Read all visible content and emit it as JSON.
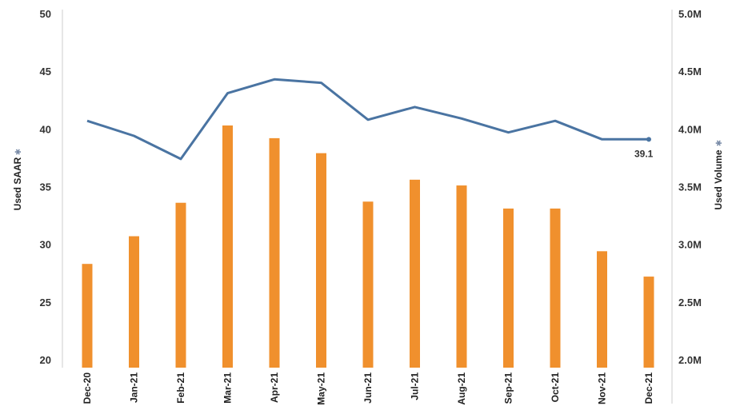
{
  "chart_data": {
    "type": "bar",
    "categories": [
      "Dec-20",
      "Jan-21",
      "Feb-21",
      "Mar-21",
      "Apr-21",
      "May-21",
      "Jun-21",
      "Jul-21",
      "Aug-21",
      "Sep-21",
      "Oct-21",
      "Nov-21",
      "Dec-21"
    ],
    "series": [
      {
        "type": "bar",
        "axis": "right",
        "color": "#F0902D",
        "values": [
          2.83,
          3.07,
          3.36,
          4.03,
          3.92,
          3.79,
          3.37,
          3.56,
          3.51,
          3.31,
          3.31,
          2.94,
          2.72
        ]
      },
      {
        "type": "line",
        "axis": "left",
        "color": "#4A74A2",
        "values": [
          40.7,
          39.4,
          37.4,
          43.1,
          44.3,
          44.0,
          40.8,
          41.9,
          40.9,
          39.7,
          40.7,
          39.1,
          39.1
        ],
        "end_label": "39.1"
      }
    ],
    "y_left": {
      "label": "Used SAAR",
      "ylim": [
        20,
        50
      ],
      "ticks": [
        "20",
        "25",
        "30",
        "35",
        "40",
        "45",
        "50"
      ]
    },
    "y_right": {
      "label": "Used Volume",
      "ylim": [
        2.0,
        5.0
      ],
      "ticks": [
        "2.0M",
        "2.5M",
        "3.0M",
        "3.5M",
        "4.0M",
        "4.5M",
        "5.0M"
      ]
    },
    "grid": false,
    "legend": "none"
  }
}
